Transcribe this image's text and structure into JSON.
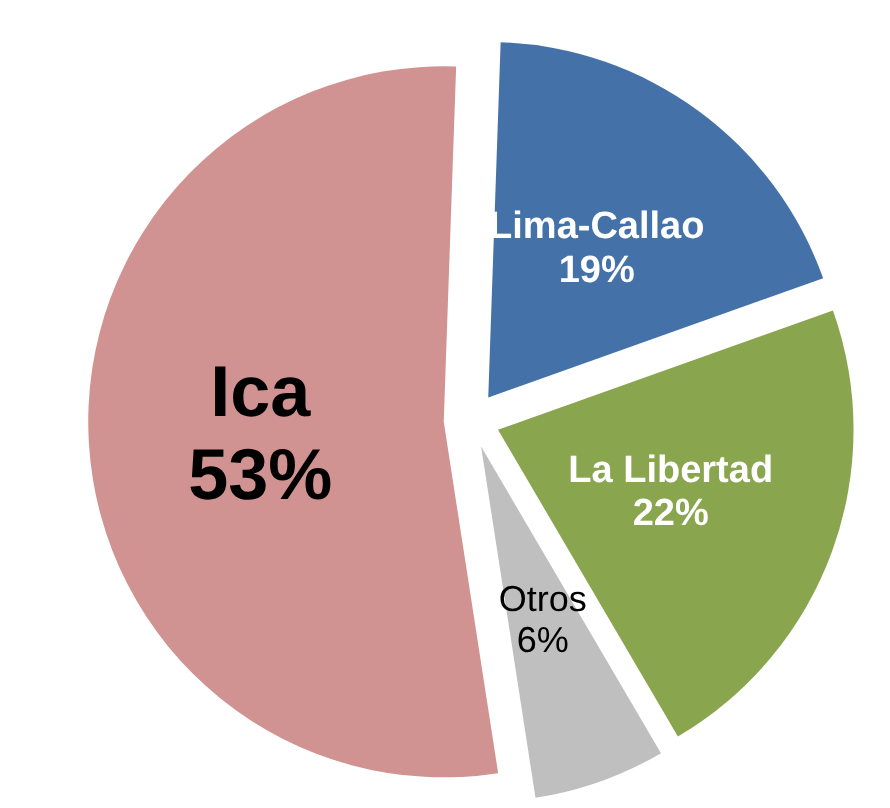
{
  "chart_data": {
    "type": "pie",
    "categories": [
      "Lima-Callao",
      "La Libertad",
      "Otros",
      "Ica"
    ],
    "values": [
      19,
      22,
      6,
      53
    ],
    "colors": [
      "#4472a8",
      "#89a54e",
      "#bfbfbf",
      "#d09391"
    ],
    "value_labels": [
      "19%",
      "22%",
      "6%",
      "53%"
    ]
  }
}
